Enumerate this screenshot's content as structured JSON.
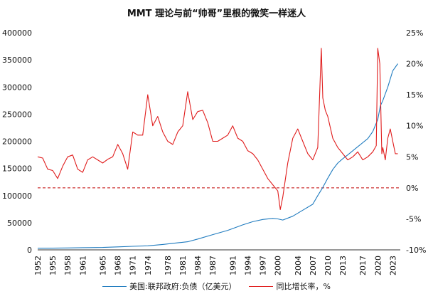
{
  "chart_data": {
    "type": "line",
    "title": "MMT 理论与前“帅哥”里根的微笑一样迷人",
    "xlabel": "",
    "ylabel": "",
    "x_ticks": [
      "1952",
      "1955",
      "1958",
      "1961",
      "1965",
      "1968",
      "1971",
      "1974",
      "1978",
      "1981",
      "1984",
      "1987",
      "1991",
      "1994",
      "1997",
      "2000",
      "2004",
      "2007",
      "2010",
      "2013",
      "2017",
      "2020",
      "2023"
    ],
    "y_left_ticks": [
      "0",
      "50000",
      "100000",
      "150000",
      "200000",
      "250000",
      "300000",
      "350000",
      "400000"
    ],
    "y_right_ticks": [
      "-10%",
      "-5%",
      "0%",
      "5%",
      "10%",
      "15%",
      "20%",
      "25%"
    ],
    "xlim": [
      1952,
      2024.5
    ],
    "ylim_left": [
      0,
      400000
    ],
    "ylim_right": [
      -10,
      25
    ],
    "legend_position": "bottom",
    "grid": false,
    "reference_line": {
      "axis": "right",
      "value": 0,
      "style": "dashed",
      "color": "#c00000"
    },
    "series": [
      {
        "name": "美国:联邦政府:负债（亿美元）",
        "axis": "left",
        "color": "#1f7bbf",
        "x": [
          1952,
          1955,
          1958,
          1961,
          1965,
          1968,
          1971,
          1974,
          1977,
          1980,
          1982,
          1984,
          1987,
          1990,
          1993,
          1995,
          1997,
          1999,
          2000,
          2001,
          2003,
          2005,
          2007,
          2008,
          2009,
          2010,
          2011,
          2012,
          2013,
          2014,
          2016,
          2018,
          2019,
          2020,
          2020.5,
          2021,
          2022,
          2023,
          2024
        ],
        "y": [
          3000,
          3200,
          3500,
          4000,
          4500,
          5500,
          6500,
          7500,
          10000,
          13000,
          15000,
          20000,
          28000,
          36000,
          46000,
          52000,
          56000,
          58000,
          57000,
          55000,
          62000,
          73000,
          84000,
          100000,
          115000,
          132000,
          148000,
          160000,
          168000,
          175000,
          190000,
          205000,
          218000,
          240000,
          265000,
          275000,
          300000,
          330000,
          343000
        ]
      },
      {
        "name": "同比增长率，%",
        "axis": "right",
        "color": "#e01c1c",
        "x": [
          1952,
          1953,
          1954,
          1955,
          1956,
          1957,
          1958,
          1959,
          1960,
          1961,
          1962,
          1963,
          1964,
          1965,
          1966,
          1967,
          1968,
          1969,
          1970,
          1971,
          1972,
          1973,
          1974,
          1975,
          1976,
          1977,
          1978,
          1979,
          1980,
          1981,
          1982,
          1983,
          1984,
          1985,
          1986,
          1987,
          1988,
          1989,
          1990,
          1991,
          1992,
          1993,
          1994,
          1995,
          1996,
          1997,
          1998,
          1999,
          2000,
          2000.5,
          2001,
          2002,
          2003,
          2004,
          2005,
          2006,
          2007,
          2008,
          2008.7,
          2009,
          2009.5,
          2010,
          2011,
          2012,
          2013,
          2014,
          2015,
          2016,
          2017,
          2018,
          2019,
          2019.7,
          2020,
          2020.4,
          2020.8,
          2021,
          2021.5,
          2022,
          2022.5,
          2023,
          2023.5,
          2024
        ],
        "y": [
          5.0,
          4.8,
          3.0,
          2.8,
          1.5,
          3.5,
          5.0,
          5.3,
          3.0,
          2.5,
          4.5,
          5.0,
          4.5,
          4.0,
          4.6,
          5.0,
          7.0,
          5.5,
          3.0,
          9.0,
          8.5,
          8.5,
          15.0,
          10.0,
          11.5,
          9.0,
          7.5,
          7.0,
          9.0,
          10.0,
          15.5,
          11.0,
          12.3,
          12.5,
          10.5,
          7.5,
          7.5,
          8.0,
          8.5,
          10.0,
          8.0,
          7.5,
          6.0,
          5.5,
          4.5,
          3.0,
          1.5,
          0.5,
          -0.5,
          -3.5,
          -1.5,
          4.0,
          8.0,
          9.5,
          7.5,
          5.5,
          4.5,
          6.5,
          22.5,
          14.5,
          12.5,
          11.5,
          8.0,
          6.5,
          5.5,
          4.5,
          5.0,
          5.8,
          4.5,
          5.0,
          5.8,
          6.8,
          22.5,
          20.0,
          5.5,
          6.5,
          4.5,
          8.0,
          9.5,
          7.5,
          5.5,
          5.5
        ]
      }
    ]
  }
}
